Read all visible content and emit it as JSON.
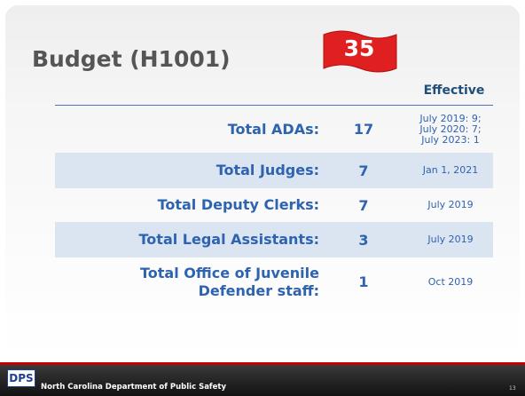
{
  "header": {
    "title": "Budget (H1001)",
    "badge": "35"
  },
  "table": {
    "effective_header": "Effective",
    "rows": [
      {
        "label": [
          "Total ADAs:"
        ],
        "count": "17",
        "effective": [
          "July 2019: 9;",
          "July 2020: 7;",
          "July 2023: 1"
        ]
      },
      {
        "label": [
          "Total Judges:"
        ],
        "count": "7",
        "effective": [
          "Jan 1, 2021"
        ]
      },
      {
        "label": [
          "Total Deputy Clerks:"
        ],
        "count": "7",
        "effective": [
          "July 2019"
        ]
      },
      {
        "label": [
          "Total Legal Assistants:"
        ],
        "count": "3",
        "effective": [
          "July 2019"
        ]
      },
      {
        "label": [
          "Total Office of Juvenile",
          "Defender staff:"
        ],
        "count": "1",
        "effective": [
          "Oct 2019"
        ]
      }
    ]
  },
  "footer": {
    "logo": "DPS",
    "organization": "North Carolina Department of Public Safety",
    "page": "13"
  }
}
